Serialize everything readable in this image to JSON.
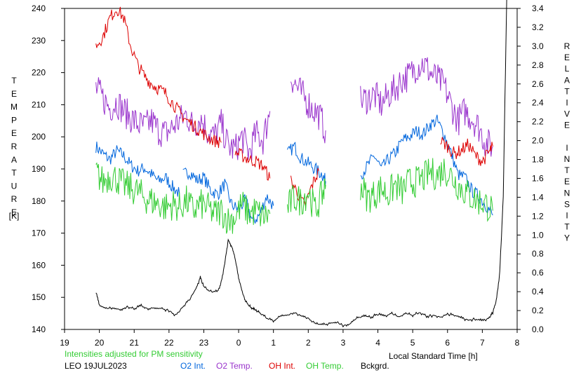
{
  "chart_data": {
    "type": "line",
    "title": "",
    "xlabel": "Local Standard Time [h]",
    "ylabel_left": "TEMPERATURE [K]",
    "ylabel_left_letters": [
      "T",
      "E",
      "M",
      "P",
      "E",
      "R",
      "A",
      "T",
      "U",
      "R",
      "E"
    ],
    "ylabel_left_unit": "[K]",
    "ylabel_right": "RELATIVE INTENSITY",
    "ylabel_right_letters": [
      "R",
      "E",
      "L",
      "A",
      "T",
      "I",
      "V",
      "E",
      "",
      "I",
      "N",
      "T",
      "E",
      "N",
      "S",
      "I",
      "T",
      "Y"
    ],
    "xlim": [
      19,
      32
    ],
    "ylim_left": [
      140,
      240
    ],
    "ylim_right": [
      0.0,
      3.4
    ],
    "x_ticks": [
      19,
      20,
      21,
      22,
      23,
      24,
      25,
      26,
      27,
      28,
      29,
      30,
      31,
      32
    ],
    "x_tick_labels": [
      "19",
      "20",
      "21",
      "22",
      "23",
      "0",
      "1",
      "2",
      "3",
      "4",
      "5",
      "6",
      "7",
      "8"
    ],
    "y_left_ticks": [
      140,
      150,
      160,
      170,
      180,
      190,
      200,
      210,
      220,
      230,
      240
    ],
    "y_right_ticks": [
      0.0,
      0.2,
      0.4,
      0.6,
      0.8,
      1.0,
      1.2,
      1.4,
      1.6,
      1.8,
      2.0,
      2.2,
      2.4,
      2.6,
      2.8,
      3.0,
      3.2,
      3.4
    ],
    "y_right_tick_labels": [
      "0.0",
      "0.2",
      "0.4",
      "0.6",
      "0.8",
      "1.0",
      "1.2",
      "1.4",
      "1.6",
      "1.8",
      "2.0",
      "2.2",
      "2.4",
      "2.6",
      "2.8",
      "3.0",
      "3.2",
      "3.4"
    ],
    "grid": false,
    "series": [
      {
        "name": "O2 Int.",
        "axis": "right",
        "color": "#0066dd",
        "segments": [
          {
            "x": [
              19.9,
              20.1,
              20.3,
              20.5,
              20.7,
              20.9,
              21.1,
              21.3,
              21.5,
              21.7,
              21.9,
              22.1,
              22.3
            ],
            "y": [
              1.94,
              1.86,
              1.8,
              1.89,
              1.84,
              1.74,
              1.68,
              1.71,
              1.64,
              1.57,
              1.61,
              1.51,
              1.44
            ]
          },
          {
            "x": [
              22.4,
              22.6,
              22.8,
              23.0,
              23.2,
              23.4,
              23.6,
              23.8,
              24.0,
              24.2,
              24.4,
              24.6,
              24.8,
              25.0
            ],
            "y": [
              1.64,
              1.67,
              1.58,
              1.61,
              1.47,
              1.43,
              1.54,
              1.32,
              1.27,
              1.37,
              1.14,
              1.21,
              1.41,
              1.31
            ]
          },
          {
            "x": [
              25.4,
              25.6,
              25.8,
              26.0,
              26.2,
              26.4,
              26.5
            ],
            "y": [
              1.86,
              1.94,
              1.81,
              1.76,
              1.7,
              1.64,
              1.57
            ]
          },
          {
            "x": [
              27.5,
              27.7,
              27.9,
              28.1,
              28.3,
              28.5,
              28.7,
              28.9,
              29.1,
              29.3,
              29.5,
              29.7,
              29.9,
              30.1,
              30.3,
              30.5,
              30.7,
              30.9,
              31.1,
              31.3
            ],
            "y": [
              1.64,
              1.73,
              1.84,
              1.7,
              1.8,
              1.87,
              2.0,
              2.04,
              2.1,
              2.07,
              2.17,
              2.21,
              2.07,
              1.87,
              1.64,
              1.61,
              1.47,
              1.41,
              1.32,
              1.21
            ]
          }
        ]
      },
      {
        "name": "O2 Temp.",
        "axis": "left",
        "color": "#9933cc",
        "segments": [
          {
            "x": [
              19.9,
              20.1,
              20.3,
              20.5,
              20.7,
              20.9,
              21.1,
              21.3,
              21.5,
              21.7,
              21.9,
              22.1,
              22.3,
              22.5,
              22.7,
              22.9,
              23.1,
              23.3,
              23.5,
              23.7,
              23.9,
              24.1,
              24.3,
              24.5,
              24.7,
              24.9
            ],
            "y": [
              215,
              212,
              209,
              211,
              208,
              206,
              204,
              203,
              205,
              202,
              201,
              203,
              205,
              207,
              203,
              206,
              202,
              200,
              204,
              197,
              196,
              200,
              195,
              201,
              199,
              208
            ]
          },
          {
            "x": [
              25.5,
              25.7,
              25.9,
              26.1,
              26.3,
              26.5
            ],
            "y": [
              219,
              215,
              212,
              209,
              207,
              202
            ]
          },
          {
            "x": [
              27.5,
              27.7,
              27.9,
              28.1,
              28.3,
              28.5,
              28.7,
              28.9,
              29.1,
              29.3,
              29.5,
              29.7,
              29.9,
              30.1,
              30.3,
              30.5,
              30.7,
              30.9,
              31.1,
              31.3
            ],
            "y": [
              211,
              212,
              213,
              210,
              213,
              215,
              218,
              219,
              222,
              223,
              220,
              218,
              216,
              210,
              205,
              208,
              206,
              203,
              198,
              197
            ]
          }
        ]
      },
      {
        "name": "OH Int.",
        "axis": "right",
        "color": "#dd0000",
        "segments": [
          {
            "x": [
              19.9,
              20.1,
              20.3,
              20.5,
              20.7,
              20.9,
              21.1,
              21.3,
              21.5,
              21.7,
              21.9,
              22.1,
              22.3,
              22.5,
              22.7,
              22.9,
              23.1,
              23.3,
              23.5
            ],
            "y": [
              3.0,
              3.1,
              3.3,
              3.4,
              3.3,
              3.0,
              2.8,
              2.68,
              2.6,
              2.55,
              2.5,
              2.4,
              2.3,
              2.22,
              2.16,
              2.1,
              2.04,
              2.0,
              1.98
            ]
          },
          {
            "x": [
              23.9,
              24.1,
              24.3,
              24.5,
              24.7,
              24.9
            ],
            "y": [
              1.88,
              1.84,
              1.8,
              1.78,
              1.73,
              1.6
            ]
          },
          {
            "x": [
              25.5,
              25.7,
              25.9,
              26.1,
              26.3
            ],
            "y": [
              1.58,
              1.44,
              1.3,
              1.52,
              1.68
            ]
          },
          {
            "x": [
              29.8,
              30.0,
              30.2,
              30.4,
              30.6,
              30.8,
              31.0,
              31.2,
              31.3
            ],
            "y": [
              2.0,
              1.94,
              1.86,
              1.9,
              1.96,
              1.84,
              1.78,
              1.88,
              1.94
            ]
          }
        ]
      },
      {
        "name": "OH Temp.",
        "axis": "left",
        "color": "#33cc33",
        "segments": [
          {
            "x": [
              19.9,
              20.1,
              20.3,
              20.5,
              20.7,
              20.9,
              21.1,
              21.3,
              21.5,
              21.7,
              21.9,
              22.1,
              22.3,
              22.5,
              22.7,
              22.9,
              23.1,
              23.3,
              23.5,
              23.7,
              23.9,
              24.1,
              24.3,
              24.5,
              24.7,
              24.9
            ],
            "y": [
              189,
              186,
              188,
              187,
              185,
              184,
              183,
              181,
              180,
              179,
              178,
              179,
              178,
              180,
              177,
              179,
              178,
              176,
              177,
              174,
              175,
              179,
              176,
              177,
              175,
              176
            ]
          },
          {
            "x": [
              25.4,
              25.6,
              25.8,
              26.0,
              26.2,
              26.4,
              26.5
            ],
            "y": [
              178,
              181,
              180,
              183,
              177,
              182,
              185
            ]
          },
          {
            "x": [
              27.5,
              27.7,
              27.9,
              28.1,
              28.3,
              28.5,
              28.7,
              28.9,
              29.1,
              29.3,
              29.5,
              29.7,
              29.9,
              30.1,
              30.3,
              30.5,
              30.7,
              30.9,
              31.1,
              31.3
            ],
            "y": [
              185,
              181,
              182,
              184,
              182,
              185,
              183,
              186,
              186,
              187,
              189,
              188,
              190,
              188,
              185,
              183,
              181,
              180,
              179,
              177
            ]
          }
        ]
      },
      {
        "name": "Bckgrd.",
        "axis": "right",
        "color": "#000000",
        "segments": [
          {
            "x": [
              19.9,
              20.0,
              20.2,
              20.4,
              20.6,
              20.8,
              21.0,
              21.2,
              21.4,
              21.6,
              21.8,
              22.0,
              22.2,
              22.4,
              22.6,
              22.8,
              22.9,
              23.0,
              23.2,
              23.4,
              23.5,
              23.6,
              23.7,
              23.8,
              23.9,
              24.0,
              24.1,
              24.2,
              24.3,
              24.4,
              24.5,
              24.6,
              24.8,
              25.0,
              25.2,
              25.4,
              25.6,
              25.8,
              26.0,
              26.2,
              26.4,
              26.6,
              26.8,
              27.0,
              27.2,
              27.4,
              27.6,
              27.8,
              28.0,
              28.2,
              28.4,
              28.6,
              28.8,
              29.0,
              29.2,
              29.4,
              29.6,
              29.8,
              30.0,
              30.2,
              30.4,
              30.6,
              30.8,
              31.0,
              31.2,
              31.3,
              31.4,
              31.5,
              31.6,
              31.7
            ],
            "y": [
              0.4,
              0.25,
              0.22,
              0.23,
              0.21,
              0.24,
              0.22,
              0.25,
              0.22,
              0.23,
              0.22,
              0.2,
              0.15,
              0.24,
              0.32,
              0.45,
              0.55,
              0.45,
              0.4,
              0.4,
              0.5,
              0.7,
              0.95,
              0.88,
              0.75,
              0.55,
              0.4,
              0.3,
              0.25,
              0.22,
              0.2,
              0.18,
              0.12,
              0.09,
              0.14,
              0.15,
              0.18,
              0.14,
              0.12,
              0.06,
              0.05,
              0.06,
              0.08,
              0.04,
              0.06,
              0.12,
              0.14,
              0.13,
              0.16,
              0.14,
              0.17,
              0.13,
              0.17,
              0.15,
              0.18,
              0.14,
              0.15,
              0.13,
              0.16,
              0.15,
              0.12,
              0.1,
              0.11,
              0.09,
              0.12,
              0.18,
              0.3,
              0.6,
              1.4,
              3.5
            ]
          }
        ]
      }
    ],
    "annotations": {
      "note": "Intensities adjusted for PM sensitivity",
      "site_date": "LEO 19JUL2023"
    }
  },
  "colors": {
    "o2_int": "#0066dd",
    "o2_temp": "#9933cc",
    "oh_int": "#dd0000",
    "oh_temp": "#33cc33",
    "background": "#000000",
    "note": "#33cc33"
  }
}
